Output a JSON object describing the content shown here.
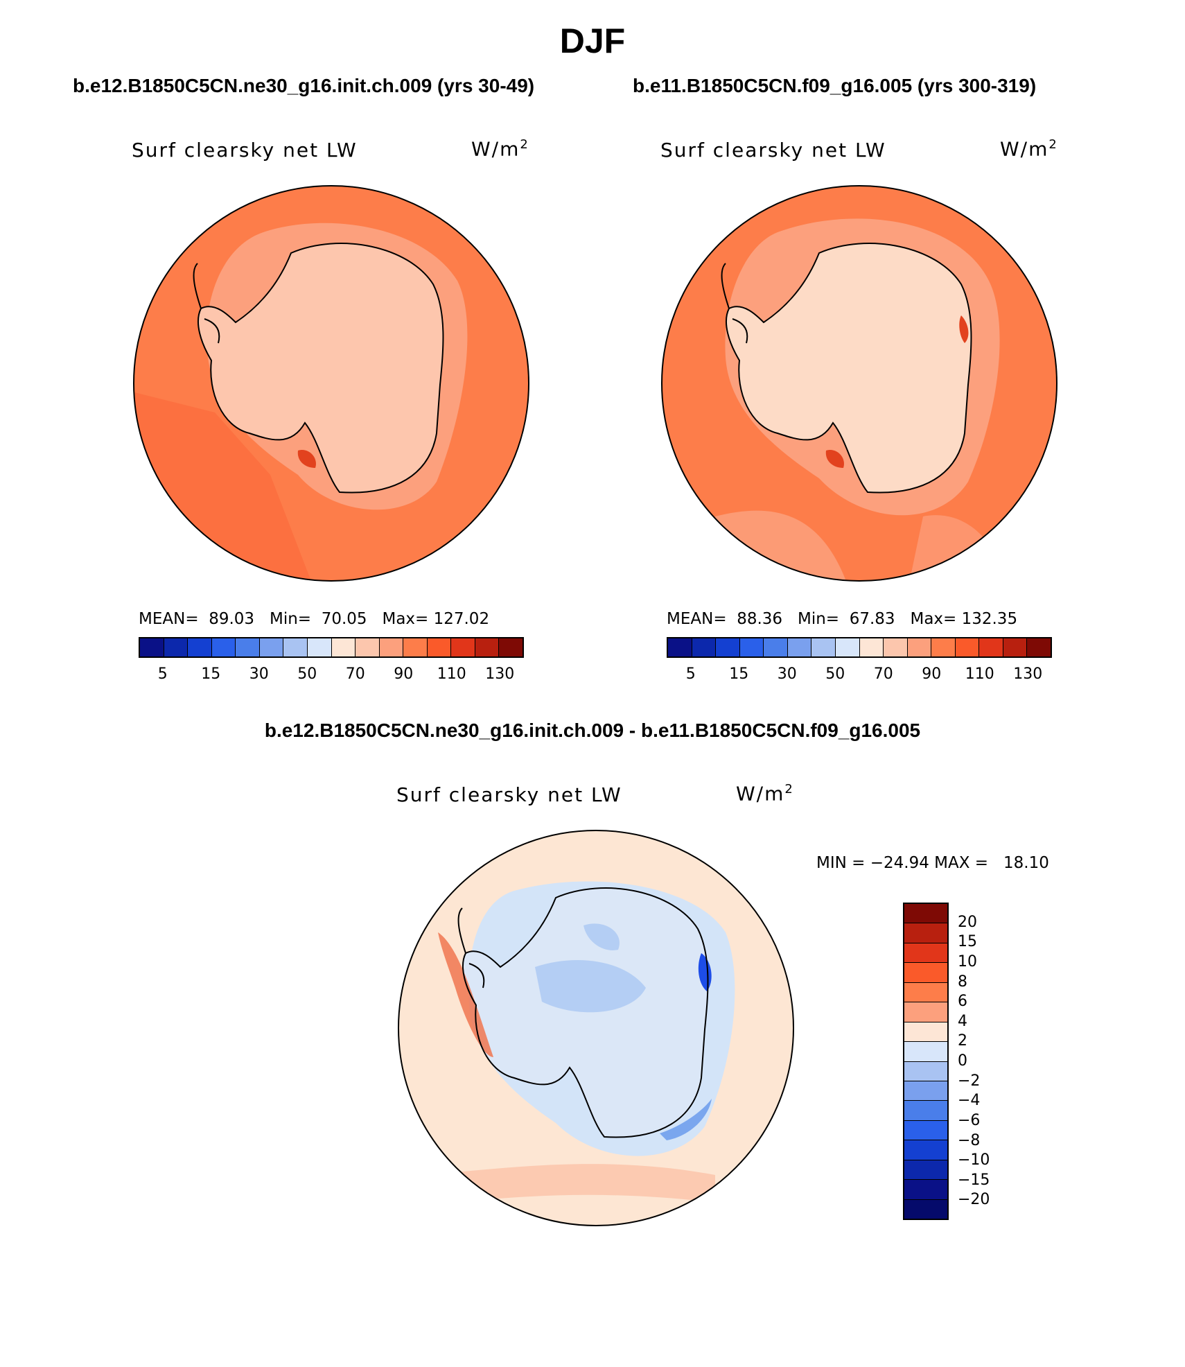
{
  "title": "DJF",
  "colors": {
    "ocean_mean": "#fd7d4a",
    "ocean_band": "#fc6639",
    "shelf": "#fca07d",
    "interior": "#fdc6ad",
    "interior_light": "#fddbc6",
    "hot_spot": "#e2421e",
    "diff_bg": "#fde6d3",
    "diff_neg1": "#d3e4f8",
    "diff_neg2": "#aac8f2",
    "diff_neg3": "#7aa6ee",
    "diff_neg4": "#1d4de8",
    "diff_pos1": "#fcb79b",
    "diff_pos2": "#f07550"
  },
  "panels": [
    {
      "case": "b.e12.B1850C5CN.ne30_g16.init.ch.009 (yrs 30-49)",
      "variable": "Surf clearsky net LW",
      "units_base": "W/m",
      "units_exp": "2",
      "stats": "MEAN=  89.03   Min=  70.05   Max= 127.02"
    },
    {
      "case": "b.e11.B1850C5CN.f09_g16.005 (yrs 300-319)",
      "variable": "Surf clearsky net LW",
      "units_base": "W/m",
      "units_exp": "2",
      "stats": "MEAN=  88.36   Min=  67.83   Max= 132.35"
    }
  ],
  "abs_colorbar": {
    "colors": [
      "#0a1187",
      "#0c28ac",
      "#1440d1",
      "#2a60ea",
      "#4a7eea",
      "#7aa0ee",
      "#a9c3f2",
      "#d8e6fa",
      "#fde6d6",
      "#fcc6ad",
      "#fca07d",
      "#fd7d4a",
      "#fa5a2a",
      "#e1361a",
      "#b8200f",
      "#7e0a05"
    ],
    "ticks": [
      "5",
      "15",
      "30",
      "50",
      "70",
      "90",
      "110",
      "130"
    ]
  },
  "diff": {
    "title": "b.e12.B1850C5CN.ne30_g16.init.ch.009 - b.e11.B1850C5CN.f09_g16.005",
    "variable": "Surf clearsky net LW",
    "units_base": "W/m",
    "units_exp": "2",
    "minmax": "MIN = −24.94 MAX =   18.10",
    "colorbar": {
      "colors": [
        "#7e0a05",
        "#b8200f",
        "#e1361a",
        "#fa5a2a",
        "#fd7d4a",
        "#fca07d",
        "#fde6d6",
        "#d8e6fa",
        "#a9c3f2",
        "#7aa0ee",
        "#4a7eea",
        "#2a60ea",
        "#1440d1",
        "#0c28ac",
        "#0a1187",
        "#050a6b"
      ],
      "ticks": [
        "20",
        "15",
        "10",
        "8",
        "6",
        "4",
        "2",
        "0",
        "−2",
        "−4",
        "−6",
        "−8",
        "−10",
        "−15",
        "−20"
      ]
    }
  }
}
